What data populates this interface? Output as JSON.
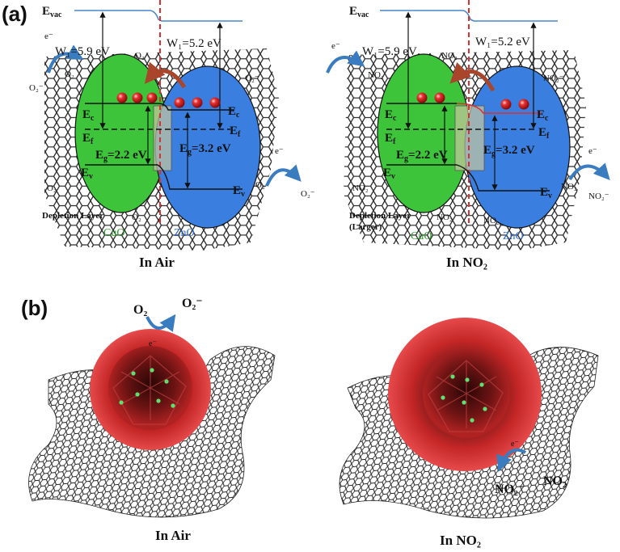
{
  "figure": {
    "panel_a_label": "(a)",
    "panel_b_label": "(b)"
  },
  "panel_a": {
    "left": {
      "caption": "In Air",
      "evac": "E",
      "evac_sub": "vac",
      "w_cuo": "W₁=5.9 eV",
      "w_zno": "W₁=5.2 eV",
      "ec_left": "E",
      "ec_left_sub": "c",
      "ef_left": "E",
      "ef_left_sub": "f",
      "ev_left": "E",
      "ev_left_sub": "v",
      "eg_cuo": "E",
      "eg_cuo_sub": "g",
      "eg_cuo_val": "=2.2 eV",
      "eg_zno": "E",
      "eg_zno_sub": "g",
      "eg_zno_val": "=3.2 eV",
      "ec_right": "E",
      "ec_right_sub": "c",
      "ef_right": "E",
      "ef_right_sub": "f",
      "ev_right": "E",
      "ev_right_sub": "v",
      "electron": "e⁻",
      "o2": "O₂",
      "o2_minus": "O₂⁻",
      "depletion": "Depletion Layer",
      "cuo": "CuO",
      "zno": "ZnO"
    },
    "right": {
      "caption": "In NO₂",
      "evac": "E",
      "evac_sub": "vac",
      "w_cuo": "W₁=5.9 eV",
      "w_zno": "W₁=5.2 eV",
      "ec_left": "E",
      "ec_left_sub": "c",
      "ef_left": "E",
      "ef_left_sub": "f",
      "ev_left": "E",
      "ev_left_sub": "v",
      "eg_cuo": "E",
      "eg_cuo_sub": "g",
      "eg_cuo_val": "=2.2 eV",
      "eg_zno": "E",
      "eg_zno_sub": "g",
      "eg_zno_val": "=3.2 eV",
      "ec_right": "E",
      "ec_right_sub": "c",
      "ef_right": "E",
      "ef_right_sub": "f",
      "ev_right": "E",
      "ev_right_sub": "v",
      "electron": "e⁻",
      "no2": "NO₂",
      "no2_minus": "NO₂⁻",
      "depletion": "Depletion Layer",
      "depletion_sub": "(Larger)",
      "cuo": "CuO",
      "zno": "ZnO"
    }
  },
  "panel_b": {
    "left": {
      "caption": "In Air",
      "o2": "O₂",
      "o2_minus": "O₂⁻",
      "electron": "e⁻"
    },
    "right": {
      "caption": "In NO₂",
      "no2": "NO₂",
      "no2_minus": "NO₂⁻",
      "electron": "e⁻"
    }
  },
  "colors": {
    "cuo_green": "#3ec43a",
    "zno_blue": "#3a7fe0",
    "vacuum_line": "#4a86c8",
    "interface_red": "#d93030",
    "sphere_red": "#e02a2a",
    "arrow_blue": "#3a7cc0",
    "arrow_brown": "#a8452a"
  }
}
